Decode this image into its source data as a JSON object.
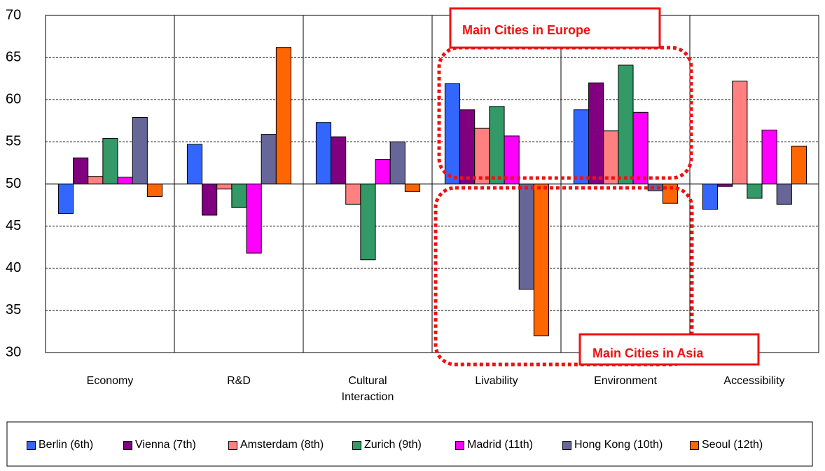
{
  "chart_data": {
    "type": "bar",
    "categories": [
      "Economy",
      "R&D",
      "Cultural Interaction",
      "Livability",
      "Environment",
      "Accessibility"
    ],
    "series": [
      {
        "name": "Berlin (6th)",
        "color": "#3366ff",
        "values": [
          46.5,
          54.7,
          57.3,
          61.9,
          58.8,
          47.0
        ]
      },
      {
        "name": "Vienna (7th)",
        "color": "#800080",
        "values": [
          53.1,
          46.3,
          55.6,
          58.8,
          62.0,
          49.7
        ]
      },
      {
        "name": "Amsterdam (8th)",
        "color": "#ff8080",
        "values": [
          50.9,
          49.4,
          47.6,
          56.6,
          56.3,
          62.2
        ]
      },
      {
        "name": "Zurich (9th)",
        "color": "#339966",
        "values": [
          55.4,
          47.2,
          41.0,
          59.2,
          64.1,
          48.3
        ]
      },
      {
        "name": "Madrid (11th)",
        "color": "#ff00ff",
        "values": [
          50.8,
          41.8,
          52.9,
          55.7,
          58.5,
          56.4
        ]
      },
      {
        "name": "Hong Kong (10th)",
        "color": "#666699",
        "values": [
          57.9,
          55.9,
          55.0,
          37.5,
          49.2,
          47.6
        ]
      },
      {
        "name": "Seoul (12th)",
        "color": "#ff6600",
        "values": [
          48.5,
          66.2,
          49.1,
          32.0,
          47.7,
          54.5
        ]
      }
    ],
    "ylim": [
      30,
      70
    ],
    "yticks": [
      30,
      35,
      40,
      45,
      50,
      55,
      60,
      65,
      70
    ],
    "y_origin": 50,
    "grid": true,
    "annotations": [
      "Main Cities in Europe",
      "Main Cities in Asia"
    ]
  }
}
